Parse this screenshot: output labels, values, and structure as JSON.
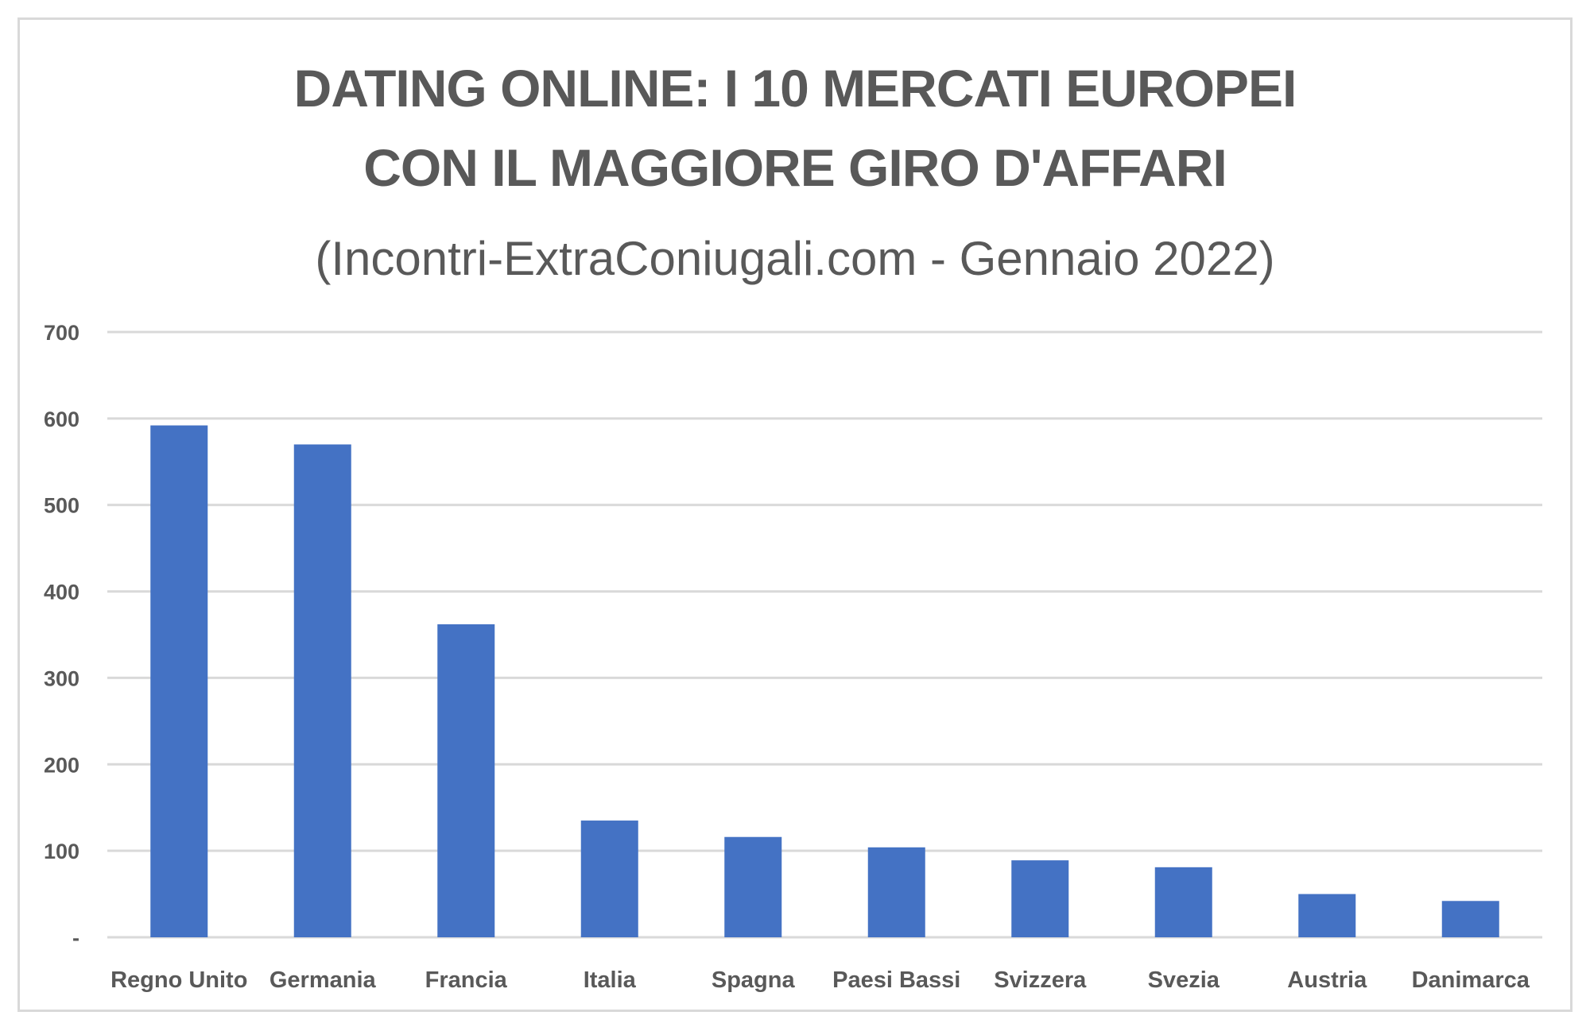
{
  "chart_data": {
    "type": "bar",
    "title_line1": "DATING ONLINE: I 10 MERCATI EUROPEI",
    "title_line2": "CON IL MAGGIORE GIRO D'AFFARI",
    "subtitle": "(Incontri-ExtraConiugali.com - Gennaio 2022)",
    "categories": [
      "Regno Unito",
      "Germania",
      "Francia",
      "Italia",
      "Spagna",
      "Paesi Bassi",
      "Svizzera",
      "Svezia",
      "Austria",
      "Danimarca"
    ],
    "values": [
      592,
      570,
      362,
      135,
      116,
      104,
      89,
      81,
      50,
      42
    ],
    "ylim": [
      0,
      700
    ],
    "yticks": [
      0,
      100,
      200,
      300,
      400,
      500,
      600,
      700
    ],
    "ytick_labels": [
      "-",
      "100",
      "200",
      "300",
      "400",
      "500",
      "600",
      "700"
    ],
    "grid": true,
    "bar_color": "#4472c4",
    "grid_color": "#d9d9d9",
    "text_color": "#595959"
  }
}
